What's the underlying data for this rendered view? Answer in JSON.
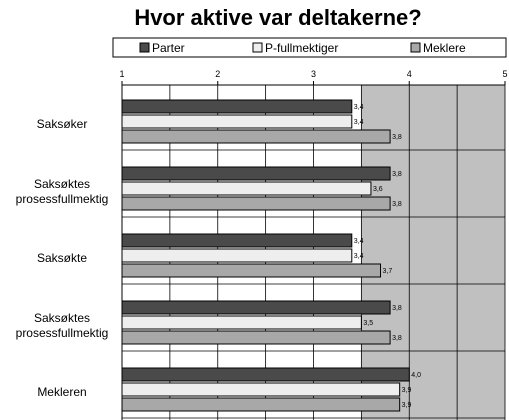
{
  "chart_data": {
    "type": "bar",
    "orientation": "horizontal",
    "title": "Hvor aktive var deltakerne?",
    "xlim": [
      1,
      5
    ],
    "ticks": [
      "1",
      "2",
      "3",
      "4",
      "5"
    ],
    "grid": true,
    "legend_position": "top",
    "categories": [
      "Saksøker",
      "Saksøktes prosessfullmektig",
      "Saksøkte",
      "Saksøktes prosessfullmektig",
      "Mekleren"
    ],
    "category_lines": [
      [
        "Saksøker"
      ],
      [
        "Saksøktes",
        "prosessfullmektig"
      ],
      [
        "Saksøkte"
      ],
      [
        "Saksøktes",
        "prosessfullmektig"
      ],
      [
        "Mekleren"
      ]
    ],
    "series": [
      {
        "name": "Parter",
        "color": "#4a4a4a",
        "values": [
          3.4,
          3.8,
          3.4,
          3.8,
          4.0
        ],
        "labels": [
          "3,4",
          "3,8",
          "3,4",
          "3,8",
          "4,0"
        ]
      },
      {
        "name": "P-fullmektiger",
        "color": "#eeeeee",
        "values": [
          3.4,
          3.6,
          3.4,
          3.5,
          3.9
        ],
        "labels": [
          "3,4",
          "3,6",
          "3,4",
          "3,5",
          "3,9"
        ]
      },
      {
        "name": "Meklere",
        "color": "#a8a8a8",
        "values": [
          3.8,
          3.8,
          3.7,
          3.8,
          3.9
        ],
        "labels": [
          "3,8",
          "3,8",
          "3,7",
          "3,8",
          "3,9"
        ]
      }
    ],
    "plot_background": "#c0c0c0"
  }
}
